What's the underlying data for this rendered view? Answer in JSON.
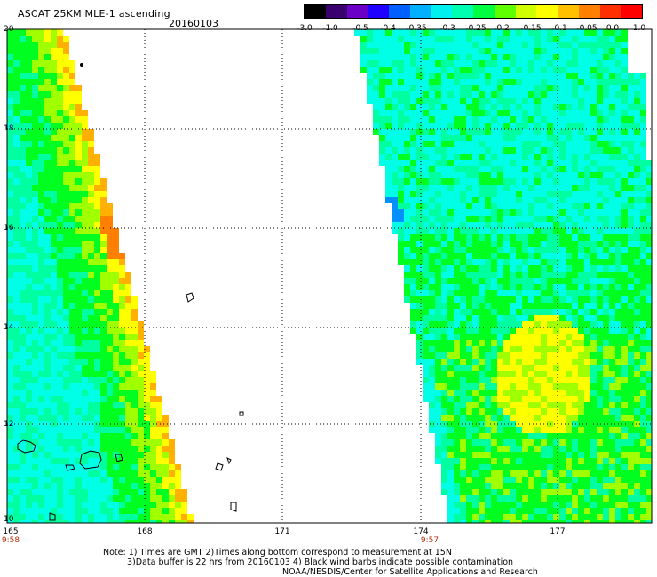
{
  "header": {
    "title": "ASCAT 25KM MLE-1 ascending",
    "date": "20160103"
  },
  "colorbar": {
    "labels": [
      "-3.0",
      "-1.0",
      "-0.5",
      "-0.4",
      "-0.35",
      "-0.3",
      "-0.25",
      "-0.2",
      "-0.15",
      "-0.1",
      "-0.05",
      "0.0",
      "1.0"
    ],
    "colors": [
      "#000000",
      "#3a0070",
      "#6a00c8",
      "#2000ff",
      "#0060ff",
      "#00b0ff",
      "#00f0f0",
      "#00ffb0",
      "#00ff40",
      "#60ff00",
      "#d0ff00",
      "#ffff00",
      "#ffc000",
      "#ff8000",
      "#ff3000",
      "#ff0000"
    ]
  },
  "axes": {
    "lat_ticks": [
      "20",
      "18",
      "16",
      "14",
      "12",
      "10"
    ],
    "lon_ticks": [
      "165",
      "168",
      "171",
      "174",
      "177"
    ],
    "pass_times": [
      "9:58",
      "9:57"
    ]
  },
  "notes": {
    "line1": "Note: 1) Times are GMT 2)Times along bottom correspond to measurement at 15N",
    "line2": "3)Data buffer is 22 hrs from 20160103 4) Black wind barbs indicate possible contamination",
    "line3": "NOAA/NESDIS/Center for Satellite Applications and Research"
  },
  "map": {
    "extent": {
      "lon": [
        164.8,
        178.5
      ],
      "lat": [
        10.0,
        20.0
      ]
    },
    "colors": {
      "cyan": "#00ffe6",
      "green_cyan": "#00ffa0",
      "green": "#00ff20",
      "yellow_green": "#a0ff00",
      "yellow": "#ffff00",
      "orange": "#ffb000",
      "deep_orange": "#ff8000",
      "blue": "#0090ff"
    }
  }
}
